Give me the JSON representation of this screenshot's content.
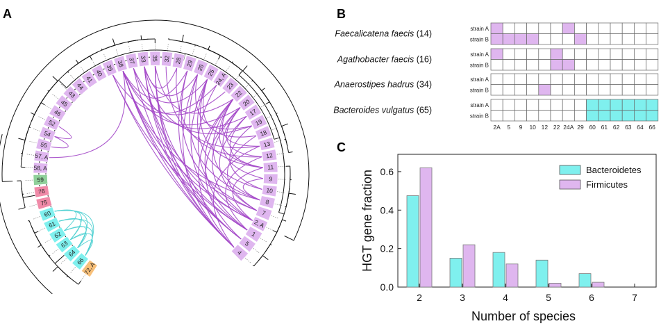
{
  "panel_letters": {
    "a": "A",
    "b": "B",
    "c": "C"
  },
  "colors": {
    "bacteroidetes": "#7ff0ee",
    "firmicutes": "#dfb6ef",
    "firmicutes_arc": "#a347c8",
    "bacteroidetes_arc": "#4fd0d2",
    "pink": "#f08aa8",
    "green": "#8fd09a",
    "orange": "#f8c07a",
    "grid_line": "#666666"
  },
  "panel_a": {
    "segments": [
      {
        "label": "72, A",
        "color": "orange"
      },
      {
        "label": "66",
        "color": "bacteroidetes"
      },
      {
        "label": "64",
        "color": "bacteroidetes"
      },
      {
        "label": "63",
        "color": "bacteroidetes"
      },
      {
        "label": "62",
        "color": "bacteroidetes"
      },
      {
        "label": "61",
        "color": "bacteroidetes"
      },
      {
        "label": "60",
        "color": "bacteroidetes"
      },
      {
        "label": "75",
        "color": "pink"
      },
      {
        "label": "76",
        "color": "pink"
      },
      {
        "label": "59",
        "color": "green"
      },
      {
        "label": "58, A",
        "color": "firmicutes"
      },
      {
        "label": "57, A",
        "color": "firmicutes"
      },
      {
        "label": "55",
        "color": "firmicutes"
      },
      {
        "label": "54",
        "color": "firmicutes"
      },
      {
        "label": "52",
        "color": "firmicutes"
      },
      {
        "label": "46",
        "color": "firmicutes"
      },
      {
        "label": "45",
        "color": "firmicutes"
      },
      {
        "label": "43",
        "color": "firmicutes"
      },
      {
        "label": "44",
        "color": "firmicutes"
      },
      {
        "label": "41",
        "color": "firmicutes"
      },
      {
        "label": "40",
        "color": "firmicutes"
      },
      {
        "label": "39",
        "color": "firmicutes"
      },
      {
        "label": "38",
        "color": "firmicutes"
      },
      {
        "label": "37",
        "color": "firmicutes"
      },
      {
        "label": "33",
        "color": "firmicutes"
      },
      {
        "label": "35",
        "color": "firmicutes"
      },
      {
        "label": "32",
        "color": "firmicutes"
      },
      {
        "label": "28",
        "color": "firmicutes"
      },
      {
        "label": "29",
        "color": "firmicutes"
      },
      {
        "label": "26",
        "color": "firmicutes"
      },
      {
        "label": "25",
        "color": "firmicutes"
      },
      {
        "label": "24, A",
        "color": "firmicutes"
      },
      {
        "label": "23",
        "color": "firmicutes"
      },
      {
        "label": "22",
        "color": "firmicutes"
      },
      {
        "label": "20",
        "color": "firmicutes"
      },
      {
        "label": "17",
        "color": "firmicutes"
      },
      {
        "label": "19",
        "color": "firmicutes"
      },
      {
        "label": "18",
        "color": "firmicutes"
      },
      {
        "label": "13",
        "color": "firmicutes"
      },
      {
        "label": "12",
        "color": "firmicutes"
      },
      {
        "label": "11",
        "color": "firmicutes"
      },
      {
        "label": "9",
        "color": "firmicutes"
      },
      {
        "label": "10",
        "color": "firmicutes"
      },
      {
        "label": "8",
        "color": "firmicutes"
      },
      {
        "label": "7",
        "color": "firmicutes"
      },
      {
        "label": "2, A",
        "color": "firmicutes"
      },
      {
        "label": "1",
        "color": "firmicutes"
      },
      {
        "label": "5",
        "color": "firmicutes"
      },
      {
        "label": "4",
        "color": "firmicutes"
      }
    ],
    "bacteroidetes_links": [
      [
        1,
        3
      ],
      [
        1,
        4
      ],
      [
        1,
        5
      ],
      [
        1,
        6
      ],
      [
        2,
        4
      ],
      [
        2,
        5
      ],
      [
        2,
        6
      ],
      [
        3,
        5
      ],
      [
        3,
        6
      ],
      [
        2,
        3
      ],
      [
        1,
        2
      ],
      [
        4,
        6
      ]
    ],
    "firmicutes_links": [
      [
        48,
        22
      ],
      [
        48,
        24
      ],
      [
        48,
        25
      ],
      [
        48,
        21
      ],
      [
        47,
        23
      ],
      [
        47,
        25
      ],
      [
        47,
        22
      ],
      [
        46,
        24
      ],
      [
        46,
        21
      ],
      [
        45,
        22
      ],
      [
        45,
        25
      ],
      [
        44,
        24
      ],
      [
        43,
        22
      ],
      [
        48,
        33
      ],
      [
        47,
        34
      ],
      [
        46,
        33
      ],
      [
        45,
        34
      ],
      [
        44,
        35
      ],
      [
        43,
        33
      ],
      [
        42,
        36
      ],
      [
        48,
        29
      ],
      [
        47,
        28
      ],
      [
        46,
        30
      ],
      [
        45,
        31
      ],
      [
        44,
        28
      ],
      [
        43,
        29
      ],
      [
        42,
        30
      ],
      [
        48,
        38
      ],
      [
        46,
        39
      ],
      [
        45,
        40
      ],
      [
        44,
        37
      ],
      [
        43,
        41
      ],
      [
        40,
        33
      ],
      [
        40,
        35
      ],
      [
        39,
        34
      ],
      [
        38,
        33
      ],
      [
        41,
        34
      ],
      [
        36,
        24
      ],
      [
        35,
        23
      ],
      [
        34,
        22
      ],
      [
        33,
        25
      ],
      [
        32,
        22
      ],
      [
        31,
        21
      ],
      [
        30,
        23
      ],
      [
        29,
        24
      ],
      [
        28,
        22
      ],
      [
        27,
        24
      ],
      [
        37,
        30
      ],
      [
        36,
        29
      ],
      [
        39,
        27
      ],
      [
        38,
        26
      ],
      [
        40,
        30
      ],
      [
        14,
        13
      ],
      [
        12,
        13
      ],
      [
        11,
        22
      ]
    ]
  },
  "panel_b": {
    "gene_labels": [
      "2A",
      "5",
      "9",
      "10",
      "12",
      "22",
      "24A",
      "29",
      "60",
      "61",
      "62",
      "63",
      "64",
      "66"
    ],
    "species": [
      {
        "name": "Faecalicatena faecis",
        "count": "(14)",
        "strains": [
          {
            "label": "strain A",
            "cells": [
              1,
              0,
              0,
              0,
              0,
              0,
              1,
              0,
              0,
              0,
              0,
              0,
              0,
              0
            ]
          },
          {
            "label": "strain B",
            "cells": [
              1,
              1,
              1,
              1,
              0,
              0,
              0,
              1,
              0,
              0,
              0,
              0,
              0,
              0
            ]
          }
        ]
      },
      {
        "name": "Agathobacter faecis",
        "count": "(16)",
        "strains": [
          {
            "label": "strain A",
            "cells": [
              1,
              0,
              0,
              0,
              0,
              1,
              0,
              0,
              0,
              0,
              0,
              0,
              0,
              0
            ]
          },
          {
            "label": "strain B",
            "cells": [
              0,
              0,
              0,
              0,
              0,
              1,
              1,
              0,
              0,
              0,
              0,
              0,
              0,
              0
            ]
          }
        ]
      },
      {
        "name": "Anaerostipes hadrus",
        "count": "(34)",
        "strains": [
          {
            "label": "strain A",
            "cells": [
              0,
              0,
              0,
              0,
              0,
              0,
              0,
              0,
              0,
              0,
              0,
              0,
              0,
              0
            ]
          },
          {
            "label": "strain B",
            "cells": [
              0,
              0,
              0,
              0,
              1,
              0,
              0,
              0,
              0,
              0,
              0,
              0,
              0,
              0
            ]
          }
        ]
      },
      {
        "name": "Bacteroides vulgatus",
        "count": "(65)",
        "strains": [
          {
            "label": "strain A",
            "cells": [
              0,
              0,
              0,
              0,
              0,
              0,
              0,
              0,
              2,
              2,
              2,
              2,
              2,
              2
            ]
          },
          {
            "label": "strain B",
            "cells": [
              0,
              0,
              0,
              0,
              0,
              0,
              0,
              0,
              2,
              2,
              2,
              2,
              2,
              2
            ]
          }
        ]
      }
    ]
  },
  "chart_data": {
    "type": "bar",
    "categories": [
      "2",
      "3",
      "4",
      "5",
      "6",
      "7"
    ],
    "series": [
      {
        "name": "Bacteroidetes",
        "values": [
          0.475,
          0.15,
          0.18,
          0.14,
          0.07,
          0
        ]
      },
      {
        "name": "Firmicutes",
        "values": [
          0.62,
          0.22,
          0.12,
          0.02,
          0.025,
          0
        ]
      }
    ],
    "xlabel": "Number of species",
    "ylabel": "HGT gene fraction",
    "ylim": [
      0,
      0.69
    ],
    "yticks": [
      0.0,
      0.2,
      0.4,
      0.6
    ],
    "ytick_labels": [
      "0.0",
      "0.2",
      "0.4",
      "0.6"
    ],
    "legend": "top-right",
    "grid": false
  }
}
